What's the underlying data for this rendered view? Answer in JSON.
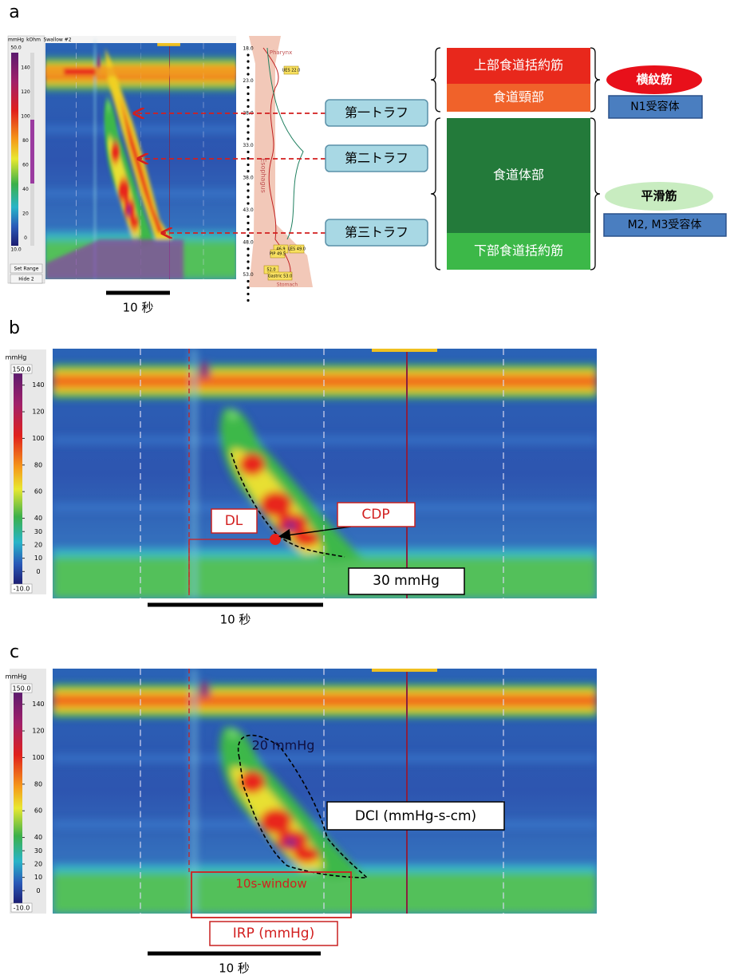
{
  "panel_a": {
    "label": "a",
    "ui": {
      "unit": "mmHg",
      "unit2": "kOhm",
      "top_label": "50.0",
      "bottom_label": "10.0",
      "title": "Swallow #2",
      "ticks": [
        "140",
        "120",
        "100",
        "80",
        "60",
        "40",
        "20",
        "0"
      ],
      "buttons": [
        "Set Range",
        "Hide 2"
      ],
      "pharynx": "Pharynx",
      "esophagus": "Esophagus",
      "stomach": "Stomach",
      "positions": [
        "18.0",
        "23.0",
        "28.0",
        "33.0",
        "38.0",
        "43.0",
        "48.0",
        "53.0"
      ],
      "markers": [
        "UES 22.0",
        "46.9",
        "LES 49.0",
        "PIP 49.5",
        "52.0",
        "Gastric 53.0"
      ]
    },
    "troughs": [
      "第一トラフ",
      "第二トラフ",
      "第三トラフ"
    ],
    "segments": [
      "上部食道括約筋",
      "食道頸部",
      "食道体部",
      "下部食道括約筋"
    ],
    "muscles": [
      {
        "name": "横紋筋",
        "receptor": "N1受容体"
      },
      {
        "name": "平滑筋",
        "receptor": "M2, M3受容体"
      }
    ],
    "time_scale": "10 秒"
  },
  "panel_b": {
    "label": "b",
    "colorbar": {
      "unit": "mmHg",
      "max": {
        "value": 150,
        "label": "150.0"
      },
      "min": {
        "value": -10,
        "label": "-10.0"
      },
      "ticks": [
        140,
        120,
        100,
        80,
        60,
        40,
        30,
        20,
        10,
        0
      ]
    },
    "annotations": [
      "DL",
      "CDP",
      "30 mmHg"
    ],
    "time_scale": "10 秒"
  },
  "panel_c": {
    "label": "c",
    "colorbar": {
      "unit": "mmHg",
      "max": {
        "value": 150,
        "label": "150.0"
      },
      "min": {
        "value": -10,
        "label": "-10.0"
      },
      "ticks": [
        140,
        120,
        100,
        80,
        60,
        40,
        30,
        20,
        10,
        0
      ]
    },
    "annotations": [
      "20 mmHg",
      "DCI (mmHg-s-cm)",
      "10s-window",
      "IRP (mmHg)"
    ],
    "time_scale": "10 秒"
  }
}
